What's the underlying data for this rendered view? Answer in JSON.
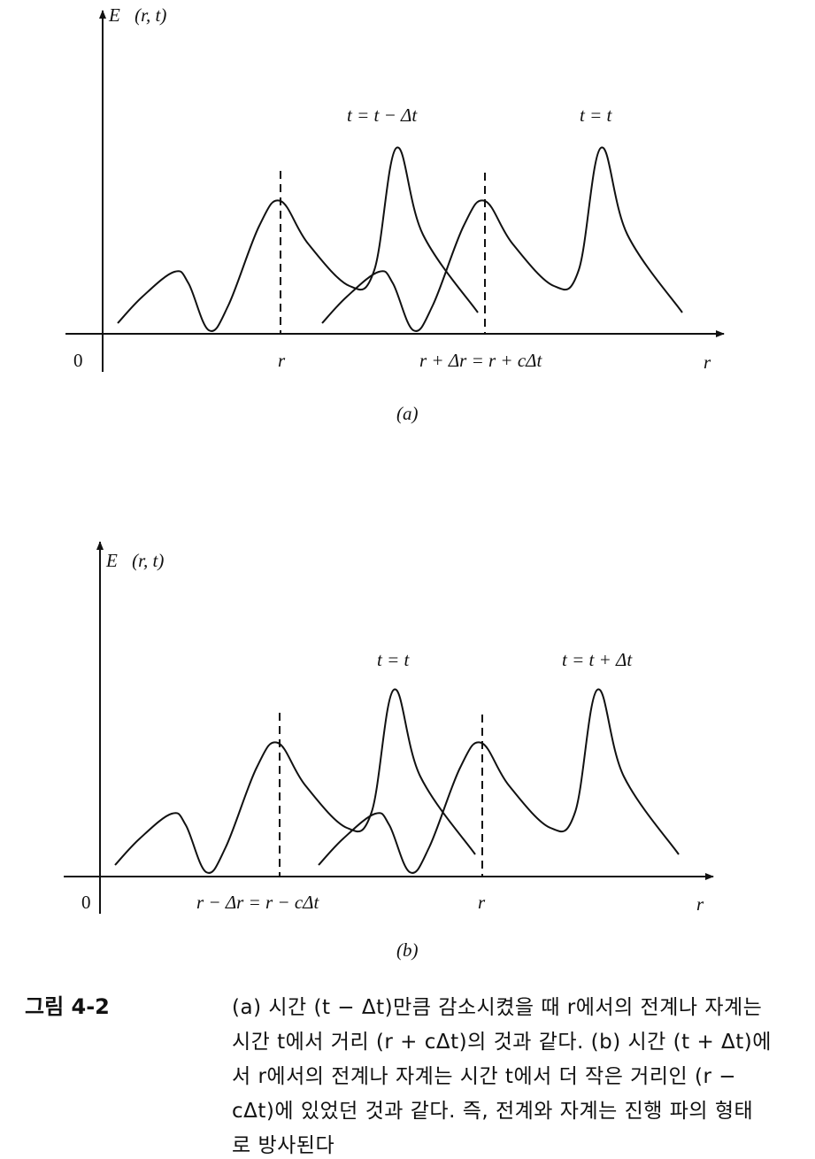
{
  "figure_a": {
    "y_axis_label": "E⃗(r, t)",
    "curve_labels": [
      "t = t − Δt",
      "t = t"
    ],
    "origin_label": "0",
    "x_tick_labels": [
      "r",
      "r + Δr = r + cΔt"
    ],
    "x_axis_label": "r",
    "panel_label": "(a)"
  },
  "figure_b": {
    "y_axis_label": "E⃗(r, t)",
    "curve_labels": [
      "t = t",
      "t = t + Δt"
    ],
    "origin_label": "0",
    "x_tick_labels": [
      "r − Δr = r − cΔt",
      "r"
    ],
    "x_axis_label": "r",
    "panel_label": "(b)"
  },
  "caption": {
    "heading": "그림 4-2",
    "lines": [
      "(a) 시간 (t − Δt)만큼 감소시켰을 때 r에서의 전계나 자계는",
      "시간 t에서 거리 (r + cΔt)의 것과 같다. (b) 시간 (t + Δt)에",
      "서 r에서의 전계나 자계는 시간 t에서 더 작은 거리인 (r −",
      "cΔt)에 있었던 것과 같다. 즉, 전계와 자계는 진행 파의 형태",
      "로 방사된다"
    ]
  }
}
